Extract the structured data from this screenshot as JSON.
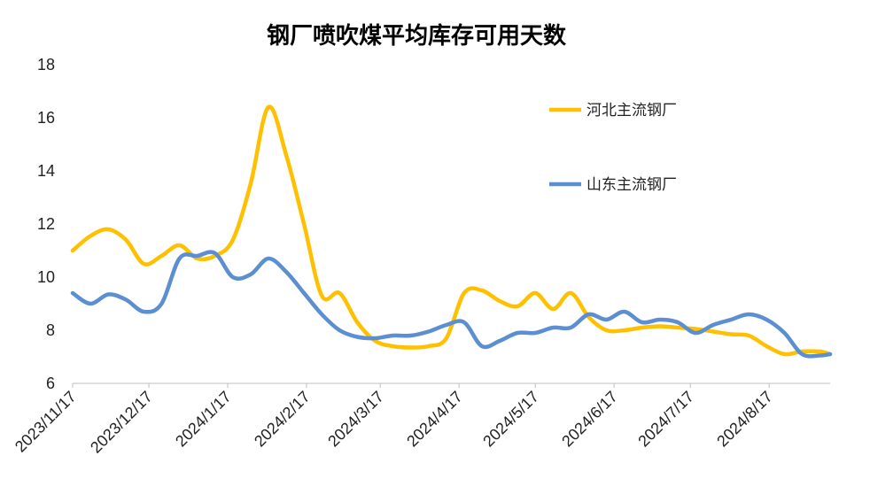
{
  "chart_data": {
    "type": "line",
    "title": "钢厂喷吹煤平均库存可用天数",
    "xlabel": "",
    "ylabel": "",
    "ylim": [
      6,
      18
    ],
    "yticks": [
      "6",
      "8",
      "10",
      "12",
      "14",
      "16",
      "18"
    ],
    "xtick_labels": [
      "2023/11/17",
      "2023/12/17",
      "2024/1/17",
      "2024/2/17",
      "2024/3/17",
      "2024/4/17",
      "2024/5/17",
      "2024/6/17",
      "2024/7/17",
      "2024/8/17"
    ],
    "x_range": [
      "2023-11-17",
      "2024-09-10"
    ],
    "grid": false,
    "legend_position": "top-right",
    "series": [
      {
        "name": "河北主流钢厂",
        "color": "#FFC000",
        "points": [
          [
            "2023-11-17",
            11.0
          ],
          [
            "2023-11-24",
            11.55
          ],
          [
            "2023-12-01",
            11.8
          ],
          [
            "2023-12-08",
            11.4
          ],
          [
            "2023-12-15",
            10.5
          ],
          [
            "2023-12-22",
            10.8
          ],
          [
            "2023-12-29",
            11.2
          ],
          [
            "2024-01-05",
            10.7
          ],
          [
            "2024-01-12",
            10.8
          ],
          [
            "2024-01-19",
            11.4
          ],
          [
            "2024-01-26",
            13.5
          ],
          [
            "2024-02-02",
            16.4
          ],
          [
            "2024-02-09",
            14.6
          ],
          [
            "2024-02-16",
            12.0
          ],
          [
            "2024-02-23",
            9.3
          ],
          [
            "2024-03-01",
            9.4
          ],
          [
            "2024-03-08",
            8.3
          ],
          [
            "2024-03-15",
            7.6
          ],
          [
            "2024-03-22",
            7.4
          ],
          [
            "2024-03-29",
            7.35
          ],
          [
            "2024-04-05",
            7.4
          ],
          [
            "2024-04-12",
            7.7
          ],
          [
            "2024-04-19",
            9.4
          ],
          [
            "2024-04-26",
            9.5
          ],
          [
            "2024-05-03",
            9.1
          ],
          [
            "2024-05-10",
            8.9
          ],
          [
            "2024-05-17",
            9.4
          ],
          [
            "2024-05-24",
            8.8
          ],
          [
            "2024-05-31",
            9.4
          ],
          [
            "2024-06-07",
            8.5
          ],
          [
            "2024-06-14",
            8.0
          ],
          [
            "2024-06-21",
            8.0
          ],
          [
            "2024-06-28",
            8.1
          ],
          [
            "2024-07-05",
            8.15
          ],
          [
            "2024-07-12",
            8.1
          ],
          [
            "2024-07-19",
            8.05
          ],
          [
            "2024-07-26",
            7.95
          ],
          [
            "2024-08-02",
            7.85
          ],
          [
            "2024-08-09",
            7.8
          ],
          [
            "2024-08-16",
            7.4
          ],
          [
            "2024-08-23",
            7.1
          ],
          [
            "2024-08-30",
            7.2
          ],
          [
            "2024-09-06",
            7.2
          ],
          [
            "2024-09-10",
            7.1
          ]
        ]
      },
      {
        "name": "山东主流钢厂",
        "color": "#5B8FD2",
        "points": [
          [
            "2023-11-17",
            9.4
          ],
          [
            "2023-11-24",
            9.0
          ],
          [
            "2023-12-01",
            9.35
          ],
          [
            "2023-12-08",
            9.15
          ],
          [
            "2023-12-15",
            8.7
          ],
          [
            "2023-12-22",
            9.0
          ],
          [
            "2023-12-29",
            10.7
          ],
          [
            "2024-01-05",
            10.8
          ],
          [
            "2024-01-12",
            10.9
          ],
          [
            "2024-01-19",
            10.0
          ],
          [
            "2024-01-26",
            10.1
          ],
          [
            "2024-02-02",
            10.7
          ],
          [
            "2024-02-09",
            10.2
          ],
          [
            "2024-02-16",
            9.4
          ],
          [
            "2024-02-23",
            8.6
          ],
          [
            "2024-03-01",
            8.0
          ],
          [
            "2024-03-08",
            7.75
          ],
          [
            "2024-03-15",
            7.7
          ],
          [
            "2024-03-22",
            7.8
          ],
          [
            "2024-03-29",
            7.8
          ],
          [
            "2024-04-05",
            7.95
          ],
          [
            "2024-04-12",
            8.2
          ],
          [
            "2024-04-19",
            8.3
          ],
          [
            "2024-04-26",
            7.4
          ],
          [
            "2024-05-03",
            7.6
          ],
          [
            "2024-05-10",
            7.9
          ],
          [
            "2024-05-17",
            7.9
          ],
          [
            "2024-05-24",
            8.1
          ],
          [
            "2024-05-31",
            8.1
          ],
          [
            "2024-06-07",
            8.6
          ],
          [
            "2024-06-14",
            8.4
          ],
          [
            "2024-06-21",
            8.7
          ],
          [
            "2024-06-28",
            8.3
          ],
          [
            "2024-07-05",
            8.4
          ],
          [
            "2024-07-12",
            8.3
          ],
          [
            "2024-07-19",
            7.9
          ],
          [
            "2024-07-26",
            8.2
          ],
          [
            "2024-08-02",
            8.4
          ],
          [
            "2024-08-09",
            8.6
          ],
          [
            "2024-08-16",
            8.4
          ],
          [
            "2024-08-23",
            7.9
          ],
          [
            "2024-08-30",
            7.1
          ],
          [
            "2024-09-06",
            7.05
          ],
          [
            "2024-09-10",
            7.1
          ]
        ]
      }
    ]
  }
}
